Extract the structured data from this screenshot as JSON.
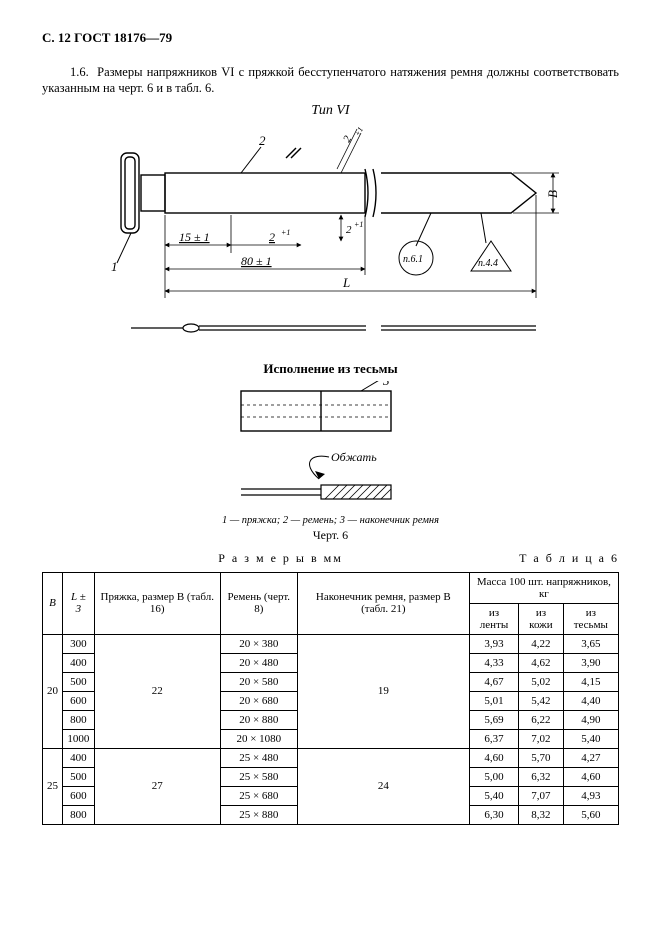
{
  "page_header": "С. 12 ГОСТ 18176—79",
  "paragraph": "1.6.  Размеры напряжников VI с пряжкой бесступенчатого натяжения ремня должны соответствовать указанным на черт. 6 и в табл. 6.",
  "fig_type_label": "Тип VI",
  "drawing1": {
    "callout1": "1",
    "callout2": "2",
    "dim_15": "15 ± 1",
    "dim_2plus1_h": "2",
    "dim_2plus1_sup": "+1",
    "dim_2plus1_v": "2",
    "dim_2plus1_v_sup": "+1",
    "dim_80": "80 ± 1",
    "dim_L": "L",
    "dim_B": "B",
    "ref_circle": "п.6.1",
    "ref_triangle": "п.4.4"
  },
  "exec_label": "Исполнение из тесьмы",
  "drawing2": {
    "callout3": "3",
    "obzhat": "Обжать"
  },
  "legend": "1 — пряжка; 2 — ремень; 3 — наконечник ремня",
  "fig_caption": "Черт. 6",
  "table_units": "Р а з м е р ы   в мм",
  "table_number": "Т а б л и ц а  6",
  "table": {
    "columns": {
      "B": "B",
      "L": "L ± 3",
      "buckle": "Пряжка, размер B (табл. 16)",
      "belt": "Ремень (черт. 8)",
      "tip": "Наконечник ремня, размер B (табл. 21)",
      "mass_header": "Масса 100 шт. напряжников, кг",
      "mass_tape": "из ленты",
      "mass_leather": "из кожи",
      "mass_braid": "из тесьмы"
    },
    "groups": [
      {
        "B": "20",
        "buckle": "22",
        "tip": "19",
        "rows": [
          {
            "L": "300",
            "belt": "20 × 380",
            "m1": "3,93",
            "m2": "4,22",
            "m3": "3,65"
          },
          {
            "L": "400",
            "belt": "20 × 480",
            "m1": "4,33",
            "m2": "4,62",
            "m3": "3,90"
          },
          {
            "L": "500",
            "belt": "20 × 580",
            "m1": "4,67",
            "m2": "5,02",
            "m3": "4,15"
          },
          {
            "L": "600",
            "belt": "20 × 680",
            "m1": "5,01",
            "m2": "5,42",
            "m3": "4,40"
          },
          {
            "L": "800",
            "belt": "20 × 880",
            "m1": "5,69",
            "m2": "6,22",
            "m3": "4,90"
          },
          {
            "L": "1000",
            "belt": "20 × 1080",
            "m1": "6,37",
            "m2": "7,02",
            "m3": "5,40"
          }
        ]
      },
      {
        "B": "25",
        "buckle": "27",
        "tip": "24",
        "rows": [
          {
            "L": "400",
            "belt": "25 × 480",
            "m1": "4,60",
            "m2": "5,70",
            "m3": "4,27"
          },
          {
            "L": "500",
            "belt": "25 × 580",
            "m1": "5,00",
            "m2": "6,32",
            "m3": "4,60"
          },
          {
            "L": "600",
            "belt": "25 × 680",
            "m1": "5,40",
            "m2": "7,07",
            "m3": "4,93"
          },
          {
            "L": "800",
            "belt": "25 × 880",
            "m1": "6,30",
            "m2": "8,32",
            "m3": "5,60"
          }
        ]
      }
    ]
  }
}
